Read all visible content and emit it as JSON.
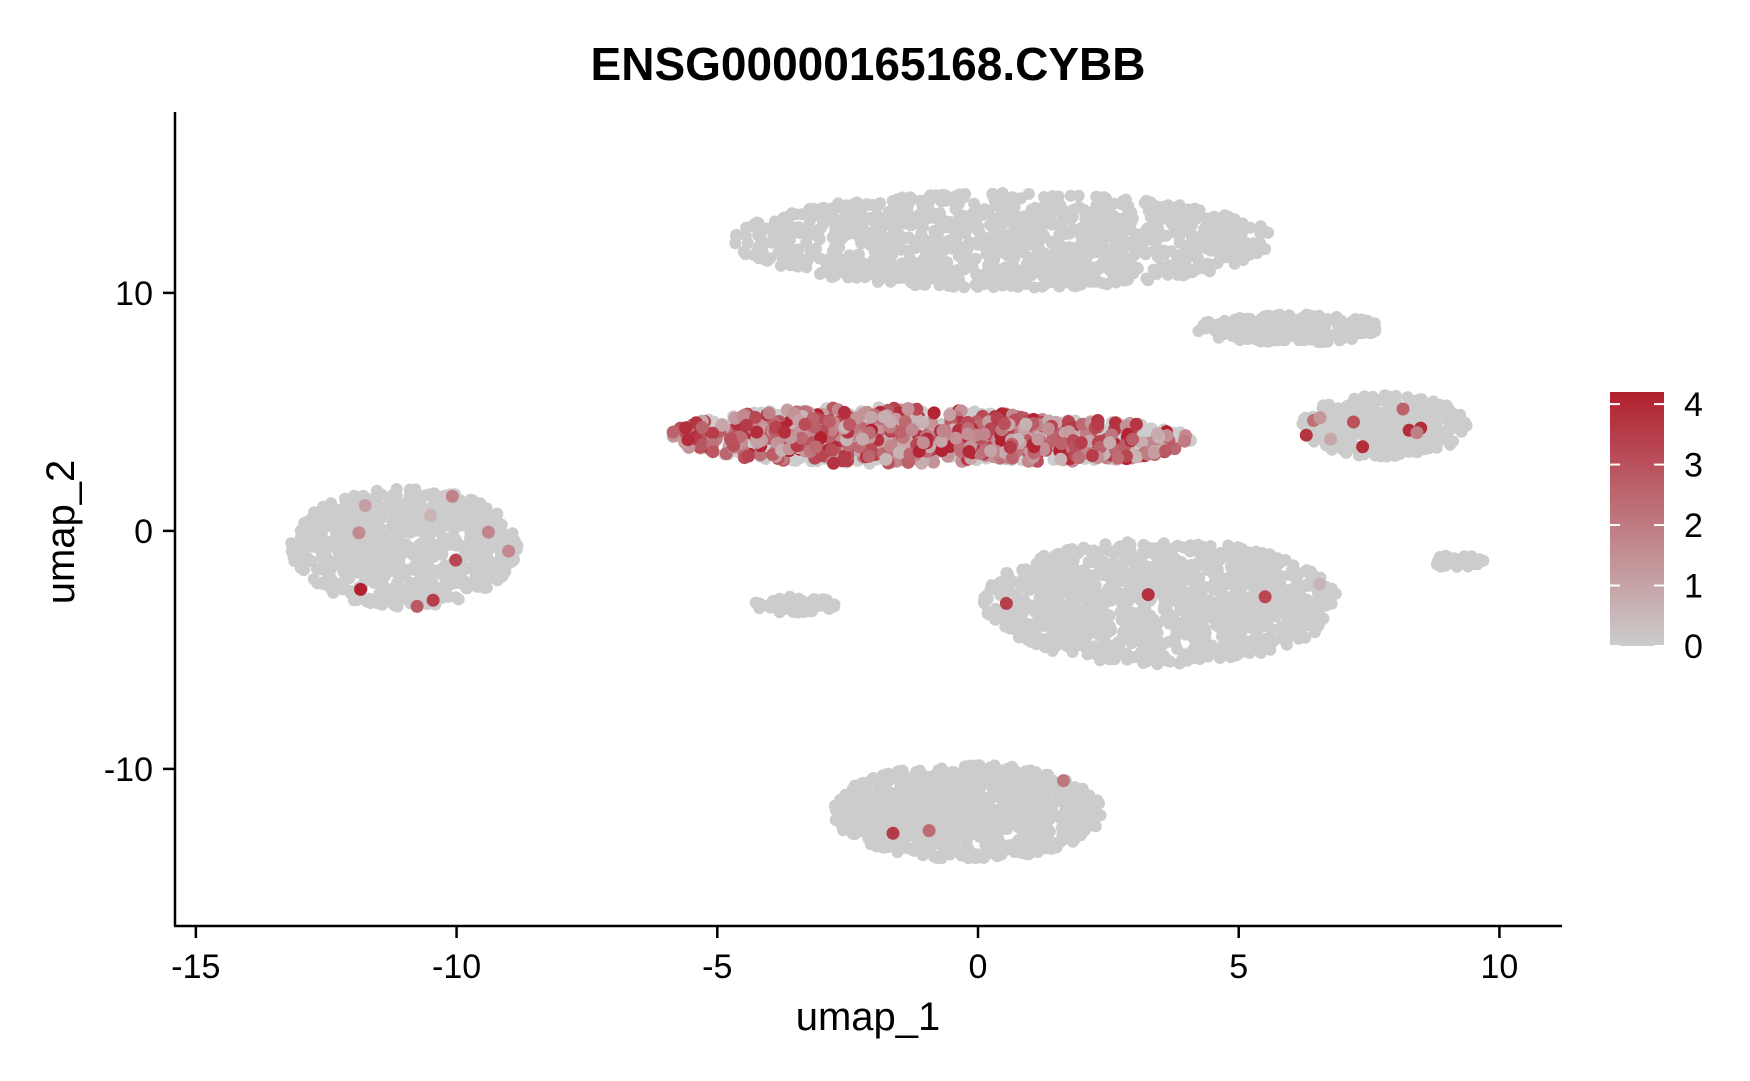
{
  "chart_data": {
    "type": "scatter",
    "title": "ENSG00000165168.CYBB",
    "xlabel": "umap_1",
    "ylabel": "umap_2",
    "xlim": [
      -15.4,
      11.2
    ],
    "ylim": [
      -16.6,
      17.6
    ],
    "xticks": [
      -15,
      -10,
      -5,
      0,
      5,
      10
    ],
    "yticks": [
      -10,
      0,
      10
    ],
    "grid": false,
    "background_color": "#cccccc",
    "low_color": "#cccccc",
    "high_color": "#b2202f",
    "legend": {
      "position": "right",
      "min": 0,
      "max": 4.2,
      "ticks": [
        0,
        1,
        2,
        3,
        4
      ]
    },
    "clusters": [
      {
        "cx": 0.5,
        "cy": 12.2,
        "rx": 5.2,
        "ry": 2.0,
        "n": 1100,
        "expr": 0.0
      },
      {
        "cx": 6.0,
        "cy": 8.5,
        "rx": 1.8,
        "ry": 0.6,
        "n": 250,
        "expr": 0.0
      },
      {
        "cx": -2.0,
        "cy": 4.0,
        "rx": 3.9,
        "ry": 1.2,
        "n": 900,
        "expr": 0.55
      },
      {
        "cx": 1.5,
        "cy": 3.8,
        "rx": 2.6,
        "ry": 0.9,
        "n": 500,
        "expr": 0.45
      },
      {
        "cx": 7.8,
        "cy": 4.4,
        "rx": 1.6,
        "ry": 1.3,
        "n": 380,
        "expr": 0.03
      },
      {
        "cx": -11.0,
        "cy": -0.7,
        "rx": 2.2,
        "ry": 2.5,
        "n": 700,
        "expr": 0.01
      },
      {
        "cx": 3.5,
        "cy": -3.0,
        "rx": 3.4,
        "ry": 2.6,
        "n": 1100,
        "expr": 0.005
      },
      {
        "cx": -3.5,
        "cy": -3.1,
        "rx": 0.8,
        "ry": 0.35,
        "n": 60,
        "expr": 0.0
      },
      {
        "cx": -0.2,
        "cy": -11.8,
        "rx": 2.6,
        "ry": 2.0,
        "n": 900,
        "expr": 0.004
      },
      {
        "cx": 9.2,
        "cy": -1.3,
        "rx": 0.5,
        "ry": 0.3,
        "n": 25,
        "expr": 0.0
      }
    ]
  }
}
